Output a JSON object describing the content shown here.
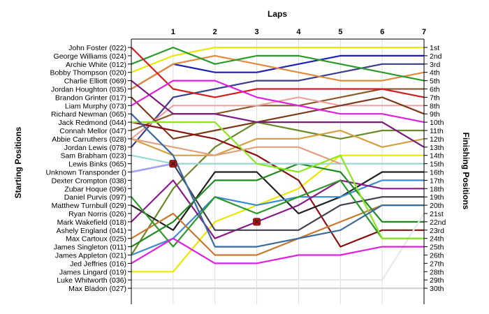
{
  "chart_data": {
    "type": "line",
    "title": "Laps",
    "ylabel_left": "Starting Positions",
    "ylabel_right": "Finishing Positions",
    "laps": [
      1,
      2,
      3,
      4,
      5,
      6,
      7
    ],
    "starting_order": [
      "John Foster (022)",
      "George Williams (024)",
      "Archie White (012)",
      "Bobby Thompson (020)",
      "Charlie Elliott (069)",
      "Jordan Houghton (035)",
      "Brandon Grinter (017)",
      "Liam Murphy (073)",
      "Richard Newman (065)",
      "Jack Redmond (044)",
      "Connah Mellor (047)",
      "Abbie Carruthers (028)",
      "Jordan Lewis (078)",
      "Sam Brabham (023)",
      "Lewis Binks (065)",
      "Unknown Transponder ()",
      "Dexter Crompton (038)",
      "Zubar Hoque (096)",
      "Daniel Purvis (097)",
      "Matthew Turnbull (029)",
      "Ryan Norris (026)",
      "Mark Wakefield (018)",
      "Ashely England (041)",
      "Max Cartoux (025)",
      "James Singleton (011)",
      "James Appleton (021)",
      "Jed Jeffries (016)",
      "James Lingard (019)",
      "Luke Whitworth (036)",
      "Max Bladon (027)"
    ],
    "finishing_labels": [
      "1st",
      "2nd",
      "3rd",
      "4th",
      "5th",
      "6th",
      "7th",
      "8th",
      "9th",
      "10th",
      "11th",
      "12th",
      "13th",
      "14th",
      "15th",
      "16th",
      "17th",
      "18th",
      "19th",
      "20th",
      "21st",
      "22nd",
      "23rd",
      "24th",
      "25th",
      "26th",
      "27th",
      "28th",
      "29th",
      "30th"
    ],
    "series": [
      {
        "color": "#e8e800",
        "positions": [
          4,
          2,
          1,
          1,
          1,
          1,
          1,
          1
        ]
      },
      {
        "color": "#1f1fb4",
        "positions": [
          6,
          3,
          4,
          4,
          3,
          2,
          2,
          2
        ]
      },
      {
        "color": "#3c3c8c",
        "positions": [
          13,
          7,
          6,
          5,
          5,
          4,
          3,
          3
        ]
      },
      {
        "color": "#e08a3a",
        "positions": [
          6,
          3,
          2,
          3,
          4,
          5,
          5,
          4
        ]
      },
      {
        "color": "#2a9a2a",
        "positions": [
          3,
          1,
          3,
          2,
          2,
          3,
          4,
          5
        ]
      },
      {
        "color": "#8a5a2a",
        "positions": [
          11,
          9,
          9,
          8,
          8,
          7,
          6,
          6
        ]
      },
      {
        "color": "#d21e1e",
        "positions": [
          1,
          6,
          7,
          6,
          6,
          6,
          6,
          7
        ]
      },
      {
        "color": "#f0a0a0",
        "positions": [
          12,
          8,
          8,
          8,
          7,
          8,
          8,
          8
        ]
      },
      {
        "color": "#7a3a1a",
        "positions": [
          7,
          12,
          11,
          10,
          9,
          8,
          7,
          9
        ]
      },
      {
        "color": "#e020e0",
        "positions": [
          8,
          5,
          5,
          7,
          8,
          9,
          9,
          10
        ]
      },
      {
        "color": "#6a8a2a",
        "positions": [
          26,
          18,
          13,
          10,
          11,
          12,
          11,
          11
        ]
      },
      {
        "color": "#d4a040",
        "positions": [
          12,
          14,
          14,
          12,
          12,
          11,
          13,
          12
        ]
      },
      {
        "color": "#7a1a7a",
        "positions": [
          5,
          9,
          9,
          10,
          10,
          10,
          10,
          13
        ]
      },
      {
        "color": "#e8e800",
        "positions": [
          28,
          28,
          22,
          20,
          18,
          14,
          14,
          14
        ]
      },
      {
        "color": "#8a1010",
        "positions": [
          10,
          11,
          12,
          14,
          17,
          25,
          23,
          23
        ]
      },
      {
        "color": "#202020",
        "positions": [
          20,
          23,
          16,
          16,
          21,
          19,
          16,
          16
        ]
      },
      {
        "color": "#3a8ad4",
        "positions": [
          26,
          24,
          19,
          20,
          19,
          19,
          17,
          17
        ]
      },
      {
        "color": "#8a1a8a",
        "positions": [
          22,
          17,
          24,
          22,
          20,
          17,
          18,
          18
        ]
      },
      {
        "color": "#404050",
        "positions": [
          16,
          15,
          23,
          23,
          23,
          20,
          19,
          19
        ]
      },
      {
        "color": "#c87830",
        "positions": [
          24,
          21,
          26,
          26,
          24,
          22,
          20,
          20
        ]
      },
      {
        "color": "#208a20",
        "positions": [
          25,
          22,
          17,
          17,
          15,
          16,
          22,
          22
        ]
      },
      {
        "color": "#e8e8e8",
        "positions": [
          29,
          29,
          29,
          29,
          29,
          29,
          29,
          21
        ]
      },
      {
        "color": "#2a9a2a",
        "positions": [
          19,
          25,
          19,
          21,
          19,
          17,
          24,
          24
        ]
      },
      {
        "color": "#e020e0",
        "positions": [
          27,
          24,
          27,
          27,
          26,
          26,
          25,
          25
        ]
      },
      {
        "color": "#9ad4d4",
        "positions": [
          14,
          15,
          15,
          15,
          15,
          15,
          15,
          15
        ]
      },
      {
        "color": "#a0a0ff",
        "positions": [
          16,
          15
        ]
      },
      {
        "color": "#d4d4d4",
        "positions": [
          30,
          30,
          30,
          30,
          30,
          30,
          30,
          30
        ]
      },
      {
        "color": "#88e820",
        "positions": [
          10,
          10,
          10,
          15,
          16,
          14,
          24,
          24
        ]
      },
      {
        "color": "#e0a080",
        "positions": [
          12,
          13,
          14,
          13,
          13,
          15
        ]
      },
      {
        "color": "#3a6aa0",
        "positions": [
          9,
          14,
          25,
          25,
          24,
          23,
          20,
          20
        ]
      }
    ],
    "retired_markers": [
      {
        "lap": 1,
        "position": 15
      },
      {
        "lap": 3,
        "position": 22
      }
    ]
  }
}
